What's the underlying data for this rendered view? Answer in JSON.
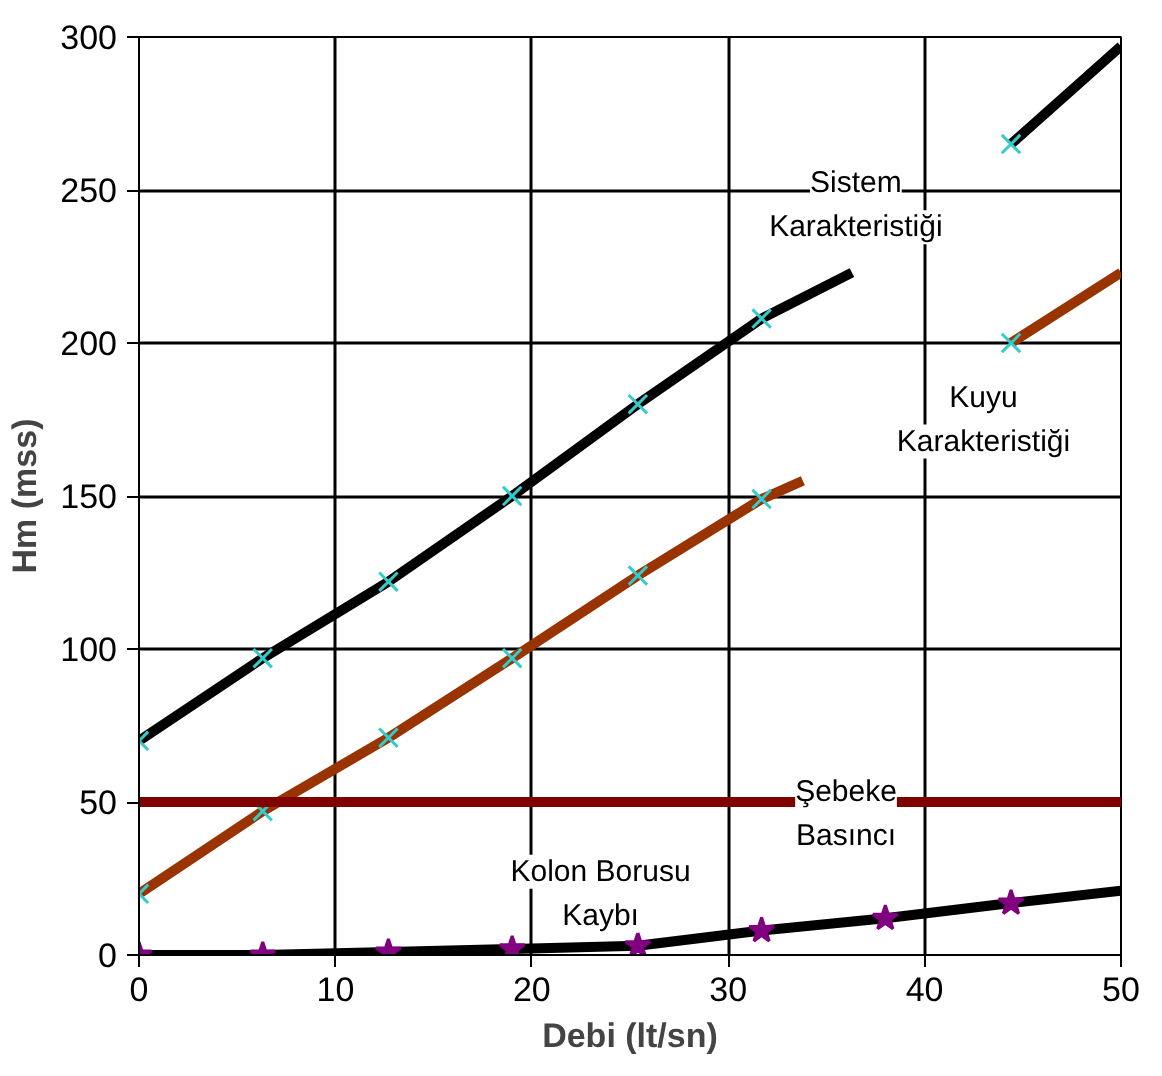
{
  "chart_data": {
    "type": "line",
    "xlabel": "Debi (lt/sn)",
    "ylabel": "Hm (mss)",
    "xlim": [
      0,
      50
    ],
    "ylim": [
      0,
      300
    ],
    "xticks": [
      0,
      10,
      20,
      30,
      40,
      50
    ],
    "yticks": [
      0,
      50,
      100,
      150,
      200,
      250,
      300
    ],
    "grid": true,
    "series": [
      {
        "name": "Sistem\nKarakteristiği",
        "color": "#000000",
        "x": [
          0,
          6.3,
          12.7,
          19,
          25.4,
          31.7,
          36.3,
          38,
          44.4,
          50
        ],
        "values": [
          70,
          97,
          122,
          150,
          180,
          208,
          223,
          null,
          265,
          297
        ]
      },
      {
        "type": "scatter",
        "marker": "cross",
        "color": "#33cccc",
        "x": [
          0,
          6.3,
          12.7,
          19,
          25.4,
          31.7,
          44.4
        ],
        "values": [
          70,
          97,
          122,
          150,
          180,
          208,
          265
        ]
      },
      {
        "name": "Kuyu\nKarakteristiği",
        "color": "#993300",
        "x": [
          0,
          6.3,
          12.7,
          19,
          25.4,
          31.7,
          33.8,
          38,
          44.4,
          50
        ],
        "values": [
          20,
          47,
          71,
          97,
          124,
          149,
          155,
          null,
          200,
          223
        ]
      },
      {
        "type": "scatter",
        "marker": "cross",
        "color": "#33cccc",
        "x": [
          0,
          6.3,
          12.7,
          19,
          25.4,
          31.7,
          44.4
        ],
        "values": [
          20,
          47,
          71,
          97,
          124,
          149,
          200
        ]
      },
      {
        "name": "Şebeke\nBasıncı",
        "color": "#800000",
        "x": [
          0,
          50
        ],
        "values": [
          50,
          50
        ]
      },
      {
        "name": "Kolon Borusu\nKaybı",
        "color": "#000000",
        "x": [
          0,
          6.3,
          12.7,
          19,
          25.4,
          31.7,
          38,
          44.4,
          50
        ],
        "values": [
          0,
          0,
          1,
          2,
          3,
          8,
          12,
          17,
          21
        ]
      },
      {
        "type": "scatter",
        "marker": "star",
        "color": "#800080",
        "x": [
          0,
          6.3,
          12.7,
          19,
          25.4,
          31.7,
          38,
          44.4
        ],
        "values": [
          0,
          0,
          1,
          2,
          3,
          8,
          12,
          17
        ]
      }
    ]
  }
}
